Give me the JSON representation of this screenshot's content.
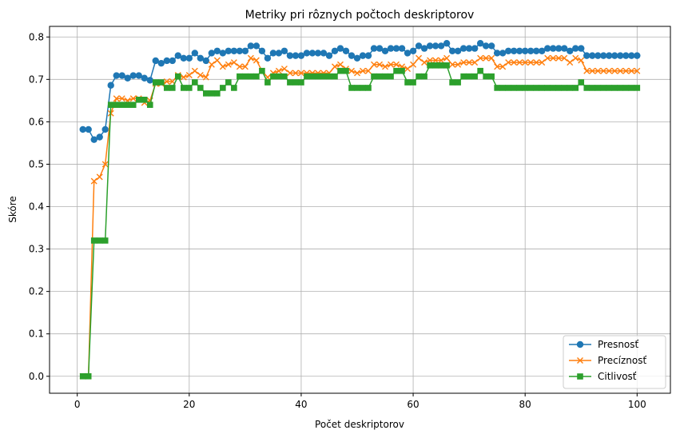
{
  "chart_data": {
    "type": "line",
    "title": "Metriky pri rôznych počtoch deskriptorov",
    "xlabel": "Počet deskriptorov",
    "ylabel": "Skóre",
    "xlim": [
      -4.95,
      105.95
    ],
    "ylim": [
      -0.04,
      0.825
    ],
    "x_ticks": [
      0,
      20,
      40,
      60,
      80,
      100
    ],
    "y_ticks": [
      0.0,
      0.1,
      0.2,
      0.3,
      0.4,
      0.5,
      0.6,
      0.7,
      0.8
    ],
    "x_tick_labels": [
      "0",
      "20",
      "40",
      "60",
      "80",
      "100"
    ],
    "y_tick_labels": [
      "0.0",
      "0.1",
      "0.2",
      "0.3",
      "0.4",
      "0.5",
      "0.6",
      "0.7",
      "0.8"
    ],
    "grid": true,
    "legend_position": "bottom-right",
    "x": [
      1,
      2,
      3,
      4,
      5,
      6,
      7,
      8,
      9,
      10,
      11,
      12,
      13,
      14,
      15,
      16,
      17,
      18,
      19,
      20,
      21,
      22,
      23,
      24,
      25,
      26,
      27,
      28,
      29,
      30,
      31,
      32,
      33,
      34,
      35,
      36,
      37,
      38,
      39,
      40,
      41,
      42,
      43,
      44,
      45,
      46,
      47,
      48,
      49,
      50,
      51,
      52,
      53,
      54,
      55,
      56,
      57,
      58,
      59,
      60,
      61,
      62,
      63,
      64,
      65,
      66,
      67,
      68,
      69,
      70,
      71,
      72,
      73,
      74,
      75,
      76,
      77,
      78,
      79,
      80,
      81,
      82,
      83,
      84,
      85,
      86,
      87,
      88,
      89,
      90,
      91,
      92,
      93,
      94,
      95,
      96,
      97,
      98,
      99,
      100
    ],
    "series": [
      {
        "name": "Presnosť",
        "color": "#1f77b4",
        "marker": "circle",
        "values": [
          0.582,
          0.582,
          0.558,
          0.564,
          0.582,
          0.686,
          0.709,
          0.709,
          0.703,
          0.709,
          0.709,
          0.703,
          0.698,
          0.744,
          0.738,
          0.744,
          0.744,
          0.756,
          0.75,
          0.75,
          0.762,
          0.75,
          0.744,
          0.762,
          0.767,
          0.762,
          0.767,
          0.767,
          0.767,
          0.767,
          0.779,
          0.779,
          0.767,
          0.75,
          0.762,
          0.762,
          0.767,
          0.756,
          0.756,
          0.756,
          0.762,
          0.762,
          0.762,
          0.762,
          0.756,
          0.767,
          0.773,
          0.767,
          0.756,
          0.75,
          0.756,
          0.756,
          0.773,
          0.773,
          0.767,
          0.773,
          0.773,
          0.773,
          0.762,
          0.767,
          0.779,
          0.773,
          0.779,
          0.779,
          0.779,
          0.785,
          0.767,
          0.767,
          0.773,
          0.773,
          0.773,
          0.785,
          0.779,
          0.779,
          0.762,
          0.762,
          0.767,
          0.767,
          0.767,
          0.767,
          0.767,
          0.767,
          0.767,
          0.773,
          0.773,
          0.773,
          0.773,
          0.767,
          0.773,
          0.773,
          0.756,
          0.756,
          0.756,
          0.756,
          0.756,
          0.756,
          0.756,
          0.756,
          0.756,
          0.756
        ]
      },
      {
        "name": "Precíznosť",
        "color": "#ff7f0e",
        "marker": "x",
        "values": [
          0.0,
          0.0,
          0.46,
          0.47,
          0.5,
          0.62,
          0.655,
          0.655,
          0.65,
          0.655,
          0.655,
          0.645,
          0.65,
          0.69,
          0.69,
          0.695,
          0.695,
          0.71,
          0.705,
          0.71,
          0.72,
          0.71,
          0.705,
          0.735,
          0.745,
          0.73,
          0.735,
          0.74,
          0.73,
          0.73,
          0.75,
          0.745,
          0.72,
          0.705,
          0.715,
          0.72,
          0.725,
          0.715,
          0.715,
          0.715,
          0.715,
          0.715,
          0.715,
          0.715,
          0.715,
          0.73,
          0.735,
          0.725,
          0.72,
          0.715,
          0.72,
          0.72,
          0.735,
          0.735,
          0.73,
          0.735,
          0.735,
          0.73,
          0.725,
          0.735,
          0.75,
          0.74,
          0.745,
          0.745,
          0.745,
          0.75,
          0.735,
          0.735,
          0.74,
          0.74,
          0.74,
          0.75,
          0.75,
          0.75,
          0.73,
          0.73,
          0.74,
          0.74,
          0.74,
          0.74,
          0.74,
          0.74,
          0.74,
          0.75,
          0.75,
          0.75,
          0.75,
          0.74,
          0.75,
          0.745,
          0.72,
          0.72,
          0.72,
          0.72,
          0.72,
          0.72,
          0.72,
          0.72,
          0.72,
          0.72
        ]
      },
      {
        "name": "Citlivosť",
        "color": "#2ca02c",
        "marker": "square",
        "values": [
          0.0,
          0.0,
          0.32,
          0.32,
          0.32,
          0.64,
          0.64,
          0.64,
          0.64,
          0.64,
          0.652,
          0.652,
          0.64,
          0.693,
          0.693,
          0.68,
          0.68,
          0.707,
          0.68,
          0.68,
          0.693,
          0.68,
          0.667,
          0.667,
          0.667,
          0.68,
          0.693,
          0.68,
          0.707,
          0.707,
          0.707,
          0.707,
          0.72,
          0.693,
          0.707,
          0.707,
          0.707,
          0.693,
          0.693,
          0.693,
          0.707,
          0.707,
          0.707,
          0.707,
          0.707,
          0.707,
          0.72,
          0.72,
          0.68,
          0.68,
          0.68,
          0.68,
          0.707,
          0.707,
          0.707,
          0.707,
          0.72,
          0.72,
          0.693,
          0.693,
          0.707,
          0.707,
          0.733,
          0.733,
          0.733,
          0.733,
          0.693,
          0.693,
          0.707,
          0.707,
          0.707,
          0.72,
          0.707,
          0.707,
          0.68,
          0.68,
          0.68,
          0.68,
          0.68,
          0.68,
          0.68,
          0.68,
          0.68,
          0.68,
          0.68,
          0.68,
          0.68,
          0.68,
          0.68,
          0.693,
          0.68,
          0.68,
          0.68,
          0.68,
          0.68,
          0.68,
          0.68,
          0.68,
          0.68,
          0.68
        ]
      }
    ]
  }
}
